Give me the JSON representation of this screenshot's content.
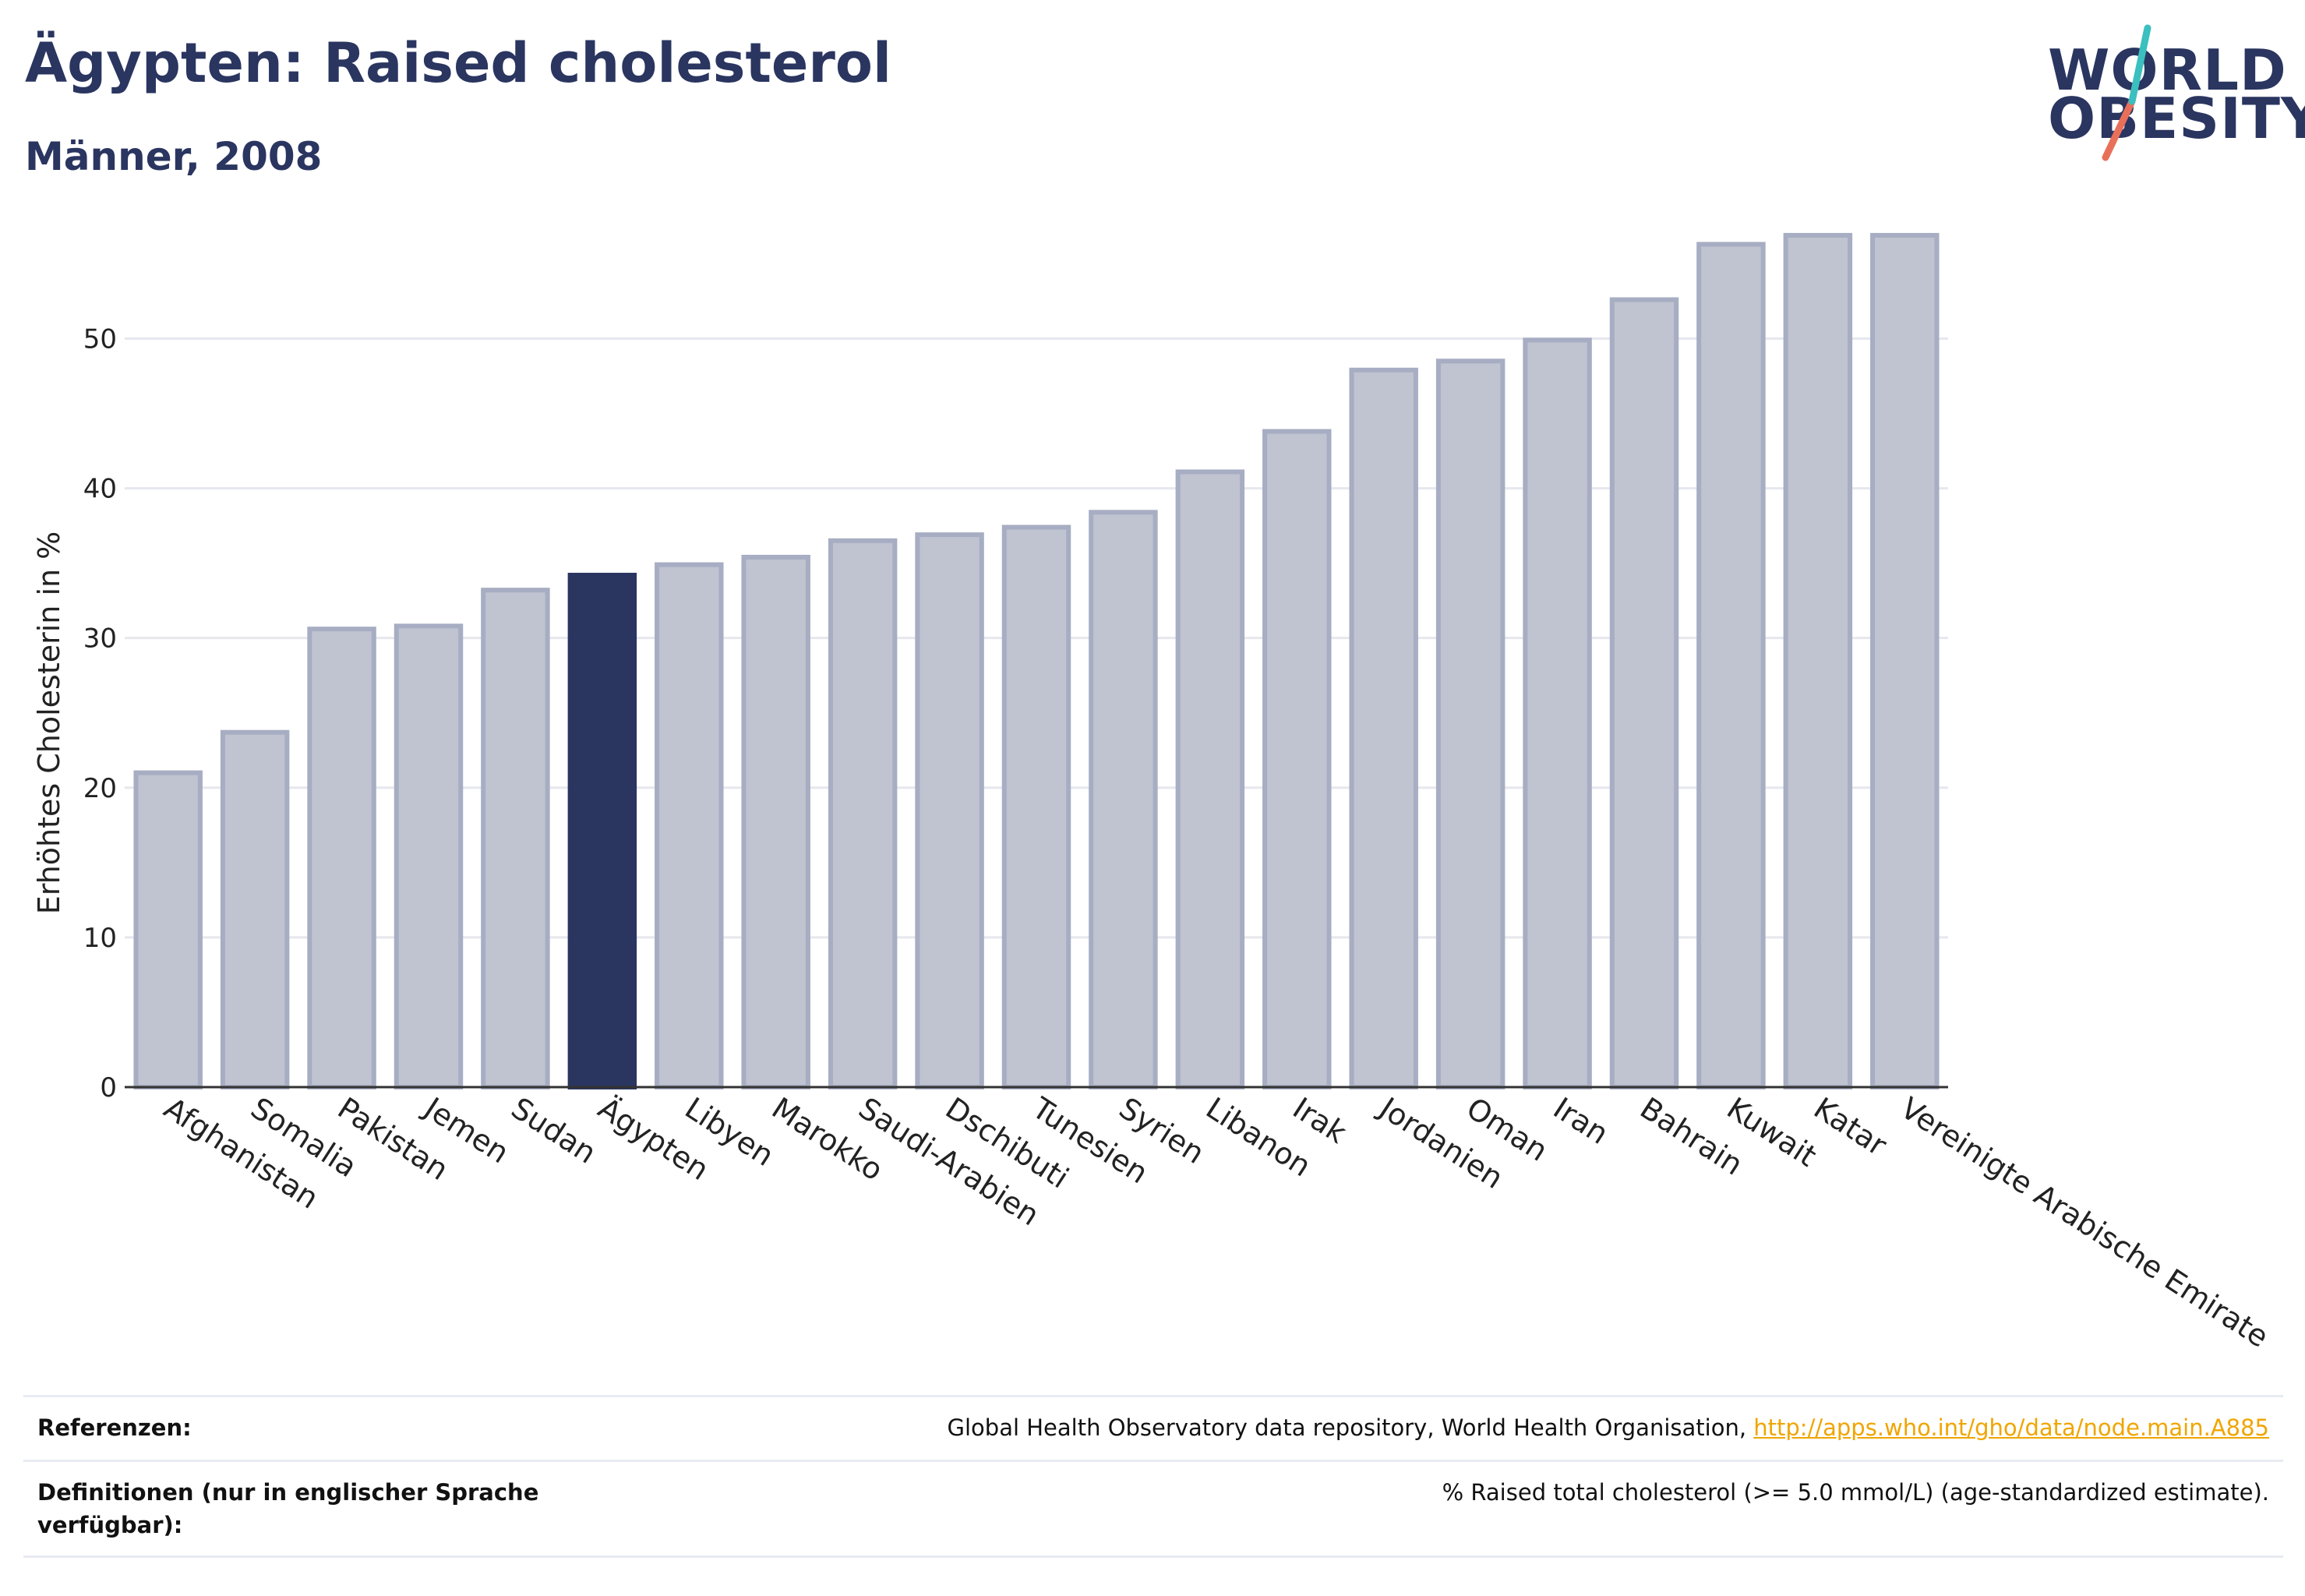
{
  "header": {
    "title": "Ägypten: Raised cholesterol",
    "subtitle": "Männer, 2008"
  },
  "logo": {
    "line1": "WORLD",
    "line2": "OBESITY",
    "accent_colors": [
      "#3bbfbf",
      "#e8705a"
    ]
  },
  "chart_data": {
    "type": "bar",
    "categories": [
      "Afghanistan",
      "Somalia",
      "Pakistan",
      "Jemen",
      "Sudan",
      "Ägypten",
      "Libyen",
      "Marokko",
      "Saudi-Arabien",
      "Dschibuti",
      "Tunesien",
      "Syrien",
      "Libanon",
      "Irak",
      "Jordanien",
      "Oman",
      "Iran",
      "Bahrain",
      "Kuwait",
      "Katar",
      "Vereinigte Arabische Emirate"
    ],
    "values": [
      21.0,
      23.7,
      30.6,
      30.8,
      33.2,
      34.2,
      34.9,
      35.4,
      36.5,
      36.9,
      37.4,
      38.4,
      41.1,
      43.8,
      47.9,
      48.5,
      49.9,
      52.6,
      56.3,
      56.9,
      56.9
    ],
    "highlight": "Ägypten",
    "ylabel": "Erhöhtes Cholesterin in %",
    "ylim": [
      0,
      57
    ],
    "yticks": [
      0,
      10,
      20,
      30,
      40,
      50
    ],
    "grid": true,
    "colors": {
      "bar": "#c0c3d0",
      "bar_border": "#a7adc2",
      "highlight": "#2a3560",
      "grid": "#e6e8ee",
      "axis": "#333333"
    }
  },
  "references": [
    {
      "label": "Referenzen:",
      "value": "Global Health Observatory data repository, World Health Organisation, ",
      "link": "http://apps.who.int/gho/data/node.main.A885"
    },
    {
      "label": "Definitionen (nur in englischer Sprache verfügbar):",
      "value": "% Raised total cholesterol (>= 5.0 mmol/L) (age-standardized estimate).",
      "link": ""
    }
  ]
}
